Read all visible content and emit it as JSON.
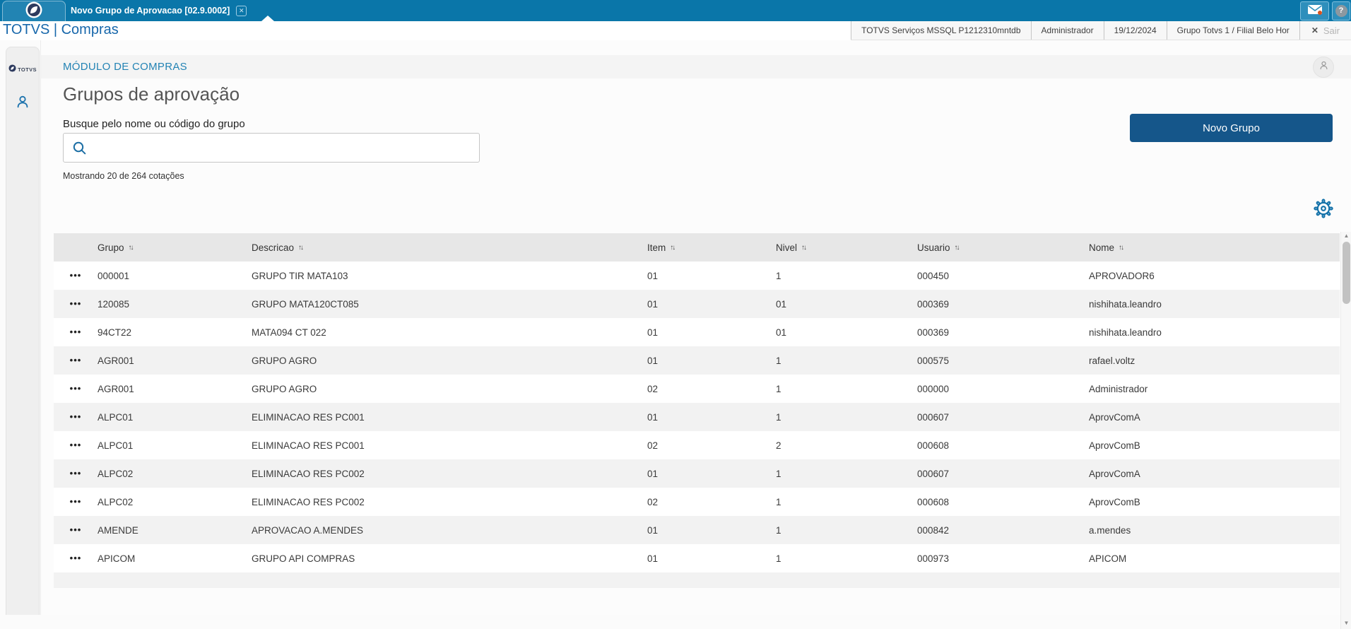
{
  "topbar": {
    "tab_title": "Novo Grupo de Aprovacao [02.9.0002]",
    "brand": "TOTVS | Compras"
  },
  "status_bar": {
    "items": [
      {
        "label": "TOTVS Serviços MSSQL P1212310mntdb"
      },
      {
        "label": "Administrador"
      },
      {
        "label": "19/12/2024"
      },
      {
        "label": "Grupo Totvs 1 / Filial Belo Hor"
      }
    ],
    "logout_label": "Sair"
  },
  "sidebar": {
    "logo_text": "TOTVS"
  },
  "module_header": {
    "title": "MÓDULO DE COMPRAS"
  },
  "page": {
    "title": "Grupos de aprovação",
    "search_label": "Busque pelo nome ou código do grupo",
    "results_summary": "Mostrando 20 de 264 cotações",
    "new_group_button": "Novo Grupo"
  },
  "glyphs": {
    "tab_close": "✕",
    "help": "?",
    "logout_x": "✕",
    "sort": "↑↓",
    "row_menu": "•••",
    "scroll_up": "▲",
    "scroll_down": "▼"
  },
  "colors": {
    "topbar_blue": "#0a76a9",
    "brand_blue": "#1767ab",
    "module_title_blue": "#2383b4",
    "button_blue": "#15568a",
    "accent_icon_blue": "#1d6fa5",
    "notification_orange": "#d9531e",
    "table_header_gray": "#e7e7e7",
    "row_alt_gray": "#f2f2f2"
  },
  "table": {
    "columns": [
      {
        "label": "Grupo"
      },
      {
        "label": "Descricao"
      },
      {
        "label": "Item"
      },
      {
        "label": "Nivel"
      },
      {
        "label": "Usuario"
      },
      {
        "label": "Nome"
      }
    ],
    "rows": [
      {
        "grupo": "000001",
        "descricao": "GRUPO TIR MATA103",
        "item": "01",
        "nivel": "1",
        "usuario": "000450",
        "nome": "APROVADOR6"
      },
      {
        "grupo": "120085",
        "descricao": "GRUPO MATA120CT085",
        "item": "01",
        "nivel": "01",
        "usuario": "000369",
        "nome": "nishihata.leandro"
      },
      {
        "grupo": "94CT22",
        "descricao": "MATA094 CT 022",
        "item": "01",
        "nivel": "01",
        "usuario": "000369",
        "nome": "nishihata.leandro"
      },
      {
        "grupo": "AGR001",
        "descricao": "GRUPO AGRO",
        "item": "01",
        "nivel": "1",
        "usuario": "000575",
        "nome": "rafael.voltz"
      },
      {
        "grupo": "AGR001",
        "descricao": "GRUPO AGRO",
        "item": "02",
        "nivel": "1",
        "usuario": "000000",
        "nome": "Administrador"
      },
      {
        "grupo": "ALPC01",
        "descricao": "ELIMINACAO RES PC001",
        "item": "01",
        "nivel": "1",
        "usuario": "000607",
        "nome": "AprovComA"
      },
      {
        "grupo": "ALPC01",
        "descricao": "ELIMINACAO RES PC001",
        "item": "02",
        "nivel": "2",
        "usuario": "000608",
        "nome": "AprovComB"
      },
      {
        "grupo": "ALPC02",
        "descricao": "ELIMINACAO RES PC002",
        "item": "01",
        "nivel": "1",
        "usuario": "000607",
        "nome": "AprovComA"
      },
      {
        "grupo": "ALPC02",
        "descricao": "ELIMINACAO RES PC002",
        "item": "02",
        "nivel": "1",
        "usuario": "000608",
        "nome": "AprovComB"
      },
      {
        "grupo": "AMENDE",
        "descricao": "APROVACAO A.MENDES",
        "item": "01",
        "nivel": "1",
        "usuario": "000842",
        "nome": "a.mendes"
      },
      {
        "grupo": "APICOM",
        "descricao": "GRUPO API COMPRAS",
        "item": "01",
        "nivel": "1",
        "usuario": "000973",
        "nome": "APICOM"
      }
    ]
  }
}
